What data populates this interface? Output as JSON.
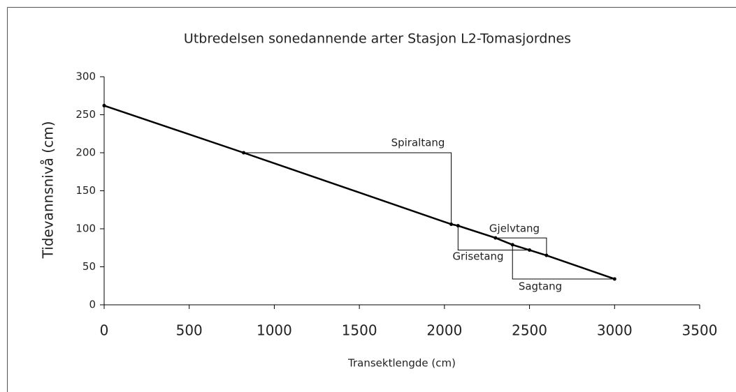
{
  "chart_data": {
    "type": "line",
    "title": "Utbredelsen sonedannende arter Stasjon L2-Tomasjordnes",
    "x_label": "Transektlengde (cm)",
    "y_label": "Tidevannsnivå (cm)",
    "x": [
      0,
      820,
      2040,
      2080,
      2300,
      2400,
      2500,
      2600,
      3000
    ],
    "values": [
      262,
      200,
      106,
      104,
      88,
      79,
      72,
      65,
      34
    ],
    "color": "#000000",
    "xlim": [
      0,
      3500
    ],
    "xticks": [
      0,
      500,
      1000,
      1500,
      2000,
      2500,
      3000,
      3500
    ],
    "ylim": [
      0,
      300
    ],
    "yticks": [
      0,
      50,
      100,
      150,
      200,
      250,
      300
    ],
    "annotations": [
      "Spiraltang",
      "Gjelvtang",
      "Grisetang",
      "Sagtang"
    ]
  }
}
